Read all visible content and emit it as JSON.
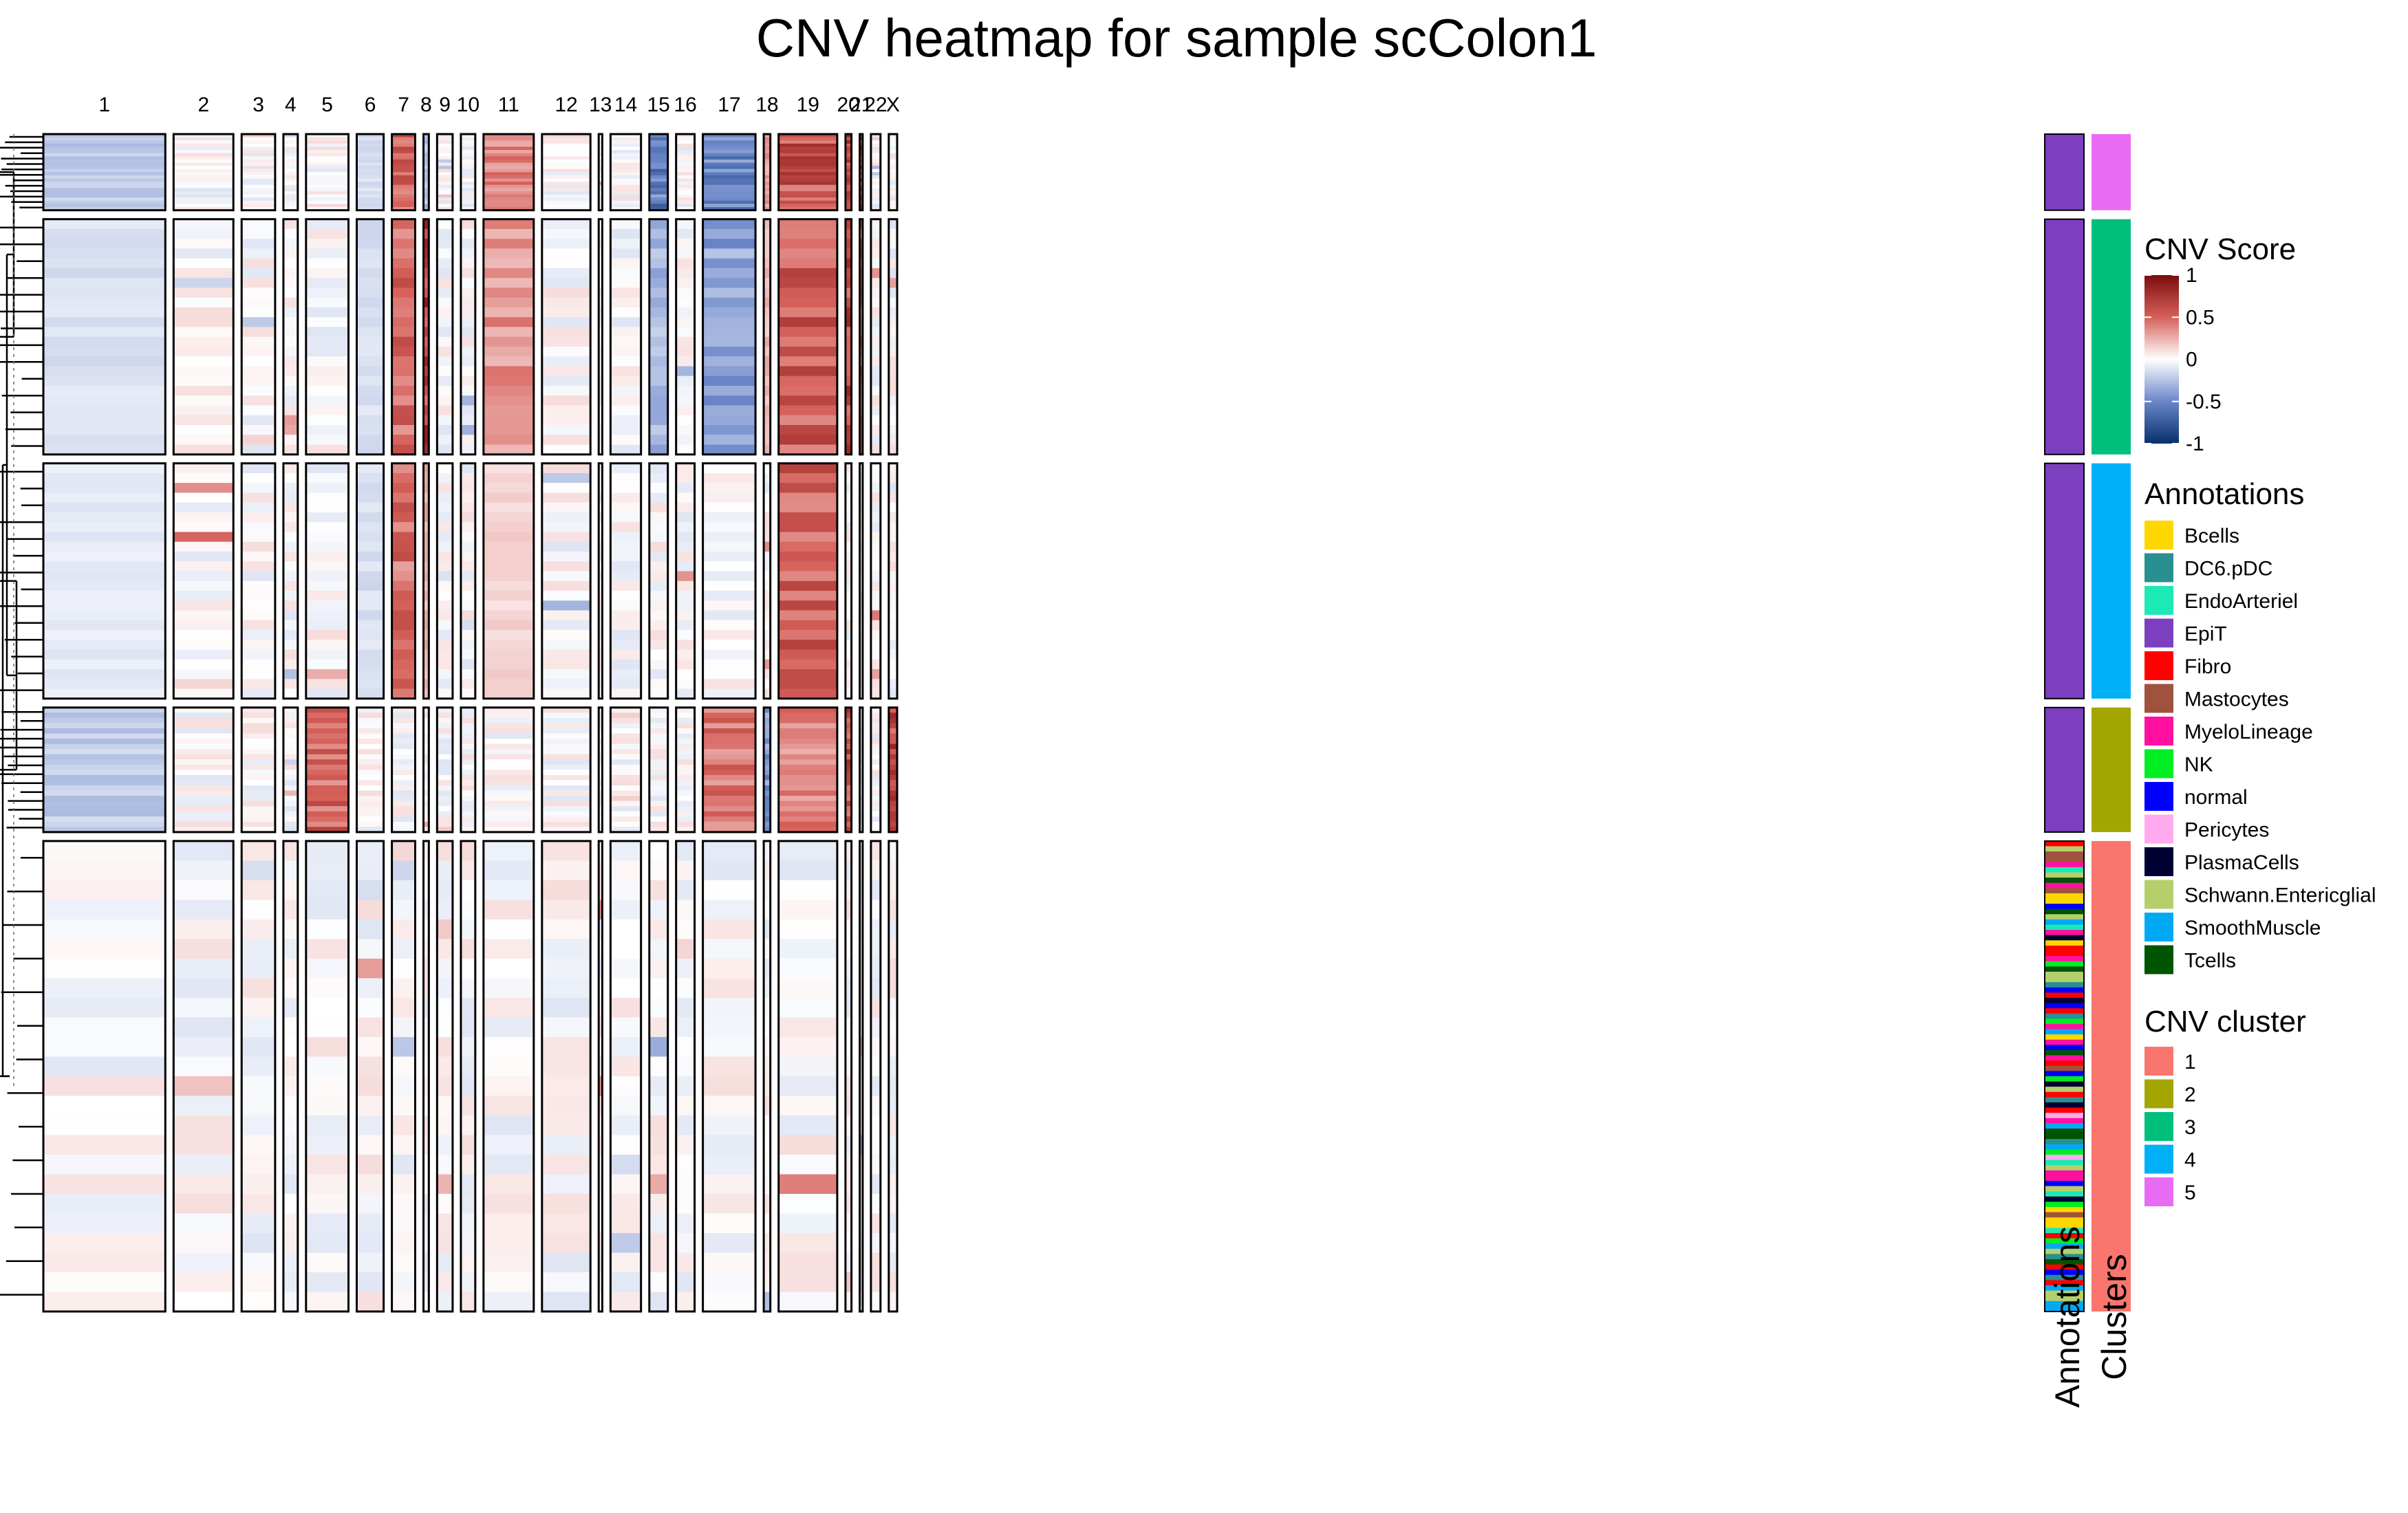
{
  "chart_data": {
    "type": "heatmap",
    "title": "CNV heatmap for sample scColon1",
    "chromosomes": [
      "1",
      "2",
      "3",
      "4",
      "5",
      "6",
      "7",
      "8",
      "9",
      "10",
      "11",
      "12",
      "13",
      "14",
      "15",
      "16",
      "17",
      "18",
      "19",
      "20",
      "21",
      "22",
      "X"
    ],
    "chromosome_gene_weights": [
      2040,
      1000,
      560,
      240,
      710,
      450,
      390,
      90,
      260,
      240,
      840,
      810,
      60,
      510,
      310,
      310,
      880,
      110,
      980,
      100,
      50,
      160,
      140
    ],
    "row_groups": [
      {
        "cluster": "5",
        "cells": 55,
        "annotation": "EpiT"
      },
      {
        "cluster": "3",
        "cells": 170,
        "annotation": "EpiT"
      },
      {
        "cluster": "4",
        "cells": 170,
        "annotation": "EpiT"
      },
      {
        "cluster": "2",
        "cells": 90,
        "annotation": "EpiT"
      },
      {
        "cluster": "1",
        "cells": 340,
        "annotation": "mixed non-epithelial"
      }
    ],
    "cluster_chrom_scores": [
      {
        "cluster": "5",
        "scores": {
          "1": -0.25,
          "6": -0.15,
          "7": 0.6,
          "8": -0.3,
          "11": 0.45,
          "15": -0.65,
          "17": -0.6,
          "18": 0.35,
          "19": 0.7,
          "20": 0.8,
          "21": 0.8
        }
      },
      {
        "cluster": "3",
        "scores": {
          "1": -0.15,
          "6": -0.15,
          "7": 0.55,
          "8": 0.8,
          "11": 0.4,
          "15": -0.35,
          "17": -0.45,
          "18": 0.25,
          "19": 0.65,
          "20": 0.75,
          "21": 0.6
        }
      },
      {
        "cluster": "4",
        "scores": {
          "1": -0.1,
          "6": -0.15,
          "7": 0.55,
          "8": 0.3,
          "11": 0.15,
          "19": 0.6
        }
      },
      {
        "cluster": "2",
        "scores": {
          "1": -0.25,
          "5": 0.6,
          "17": 0.5,
          "18": -0.5,
          "19": 0.45,
          "20": 0.7,
          "X": 0.75
        }
      },
      {
        "cluster": "1",
        "scores": {}
      }
    ],
    "color_scale": {
      "title": "CNV Score",
      "range": [
        -1,
        1
      ],
      "ticks": [
        "1",
        "0.5",
        "0",
        "-0.5",
        "-1"
      ],
      "stops": [
        {
          "value": -1,
          "color": "#08306b"
        },
        {
          "value": -0.5,
          "color": "#6a86c9"
        },
        {
          "value": 0,
          "color": "#ffffff"
        },
        {
          "value": 0.5,
          "color": "#d6605a"
        },
        {
          "value": 1,
          "color": "#7a0c0c"
        }
      ]
    },
    "annotations_legend": {
      "title": "Annotations",
      "items": [
        {
          "label": "Bcells",
          "color": "#ffd700"
        },
        {
          "label": "DC6.pDC",
          "color": "#2a8f90"
        },
        {
          "label": "EndoArteriel",
          "color": "#1de9b6"
        },
        {
          "label": "EpiT",
          "color": "#7b3fc0"
        },
        {
          "label": "Fibro",
          "color": "#ff0000"
        },
        {
          "label": "Mastocytes",
          "color": "#a0523d"
        },
        {
          "label": "MyeloLineage",
          "color": "#ff10a0"
        },
        {
          "label": "NK",
          "color": "#00ee22"
        },
        {
          "label": "normal",
          "color": "#0000ff"
        },
        {
          "label": "Pericytes",
          "color": "#ffaaee"
        },
        {
          "label": "PlasmaCells",
          "color": "#000033"
        },
        {
          "label": "Schwann.Entericglial",
          "color": "#b5cf6b"
        },
        {
          "label": "SmoothMuscle",
          "color": "#00a9f4"
        },
        {
          "label": "Tcells",
          "color": "#005500"
        }
      ]
    },
    "cluster_legend": {
      "title": "CNV cluster",
      "items": [
        {
          "label": "1",
          "color": "#f8766d"
        },
        {
          "label": "2",
          "color": "#a3a500"
        },
        {
          "label": "3",
          "color": "#00bf7d"
        },
        {
          "label": "4",
          "color": "#00b0f6"
        },
        {
          "label": "5",
          "color": "#e76bf3"
        }
      ]
    },
    "side_bar_labels": {
      "annotations": "Annotations",
      "clusters": "Clusters"
    }
  }
}
